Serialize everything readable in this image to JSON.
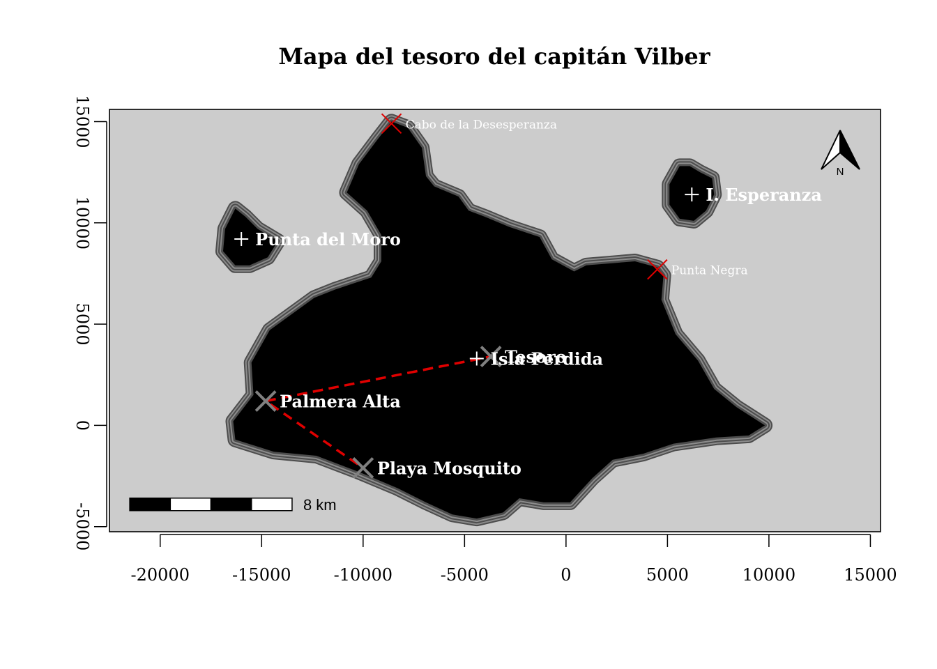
{
  "map": {
    "title": "Mapa del tesoro del capitán Vilber",
    "x_ticks": [
      "-20000",
      "-15000",
      "-10000",
      "-5000",
      "0",
      "5000",
      "10000",
      "15000"
    ],
    "y_ticks": [
      "-5000",
      "0",
      "5000",
      "10000",
      "15000"
    ],
    "north_label": "N",
    "scale_label": "8 km",
    "colors": {
      "panel_bg": "#cccccc",
      "land": "#000000",
      "coast_ring": "#8c8c8c",
      "coast_outline": "#4d4d4d",
      "route": "#e00000",
      "cape_marker": "#e00000",
      "treasure_marker": "#808080",
      "label": "#ffffff"
    }
  },
  "chart_data": {
    "type": "map",
    "title": "Mapa del tesoro del capitán Vilber",
    "xlim": [
      -22500,
      15500
    ],
    "ylim": [
      -5250,
      15600
    ],
    "x_ticks": [
      -20000,
      -15000,
      -10000,
      -5000,
      0,
      5000,
      10000,
      15000
    ],
    "y_ticks": [
      -5000,
      0,
      5000,
      10000,
      15000
    ],
    "islands": [
      {
        "name": "Isla Perdida",
        "label_point": [
          -4400,
          3300
        ],
        "outline": [
          [
            -8600,
            15000
          ],
          [
            -7800,
            14700
          ],
          [
            -7100,
            13700
          ],
          [
            -6900,
            12300
          ],
          [
            -6500,
            11800
          ],
          [
            -5300,
            11300
          ],
          [
            -4800,
            10600
          ],
          [
            -4000,
            10300
          ],
          [
            -2800,
            9800
          ],
          [
            -1300,
            9300
          ],
          [
            -700,
            8200
          ],
          [
            400,
            7600
          ],
          [
            1000,
            7900
          ],
          [
            3400,
            8100
          ],
          [
            4500,
            7800
          ],
          [
            4800,
            7400
          ],
          [
            4700,
            6200
          ],
          [
            5400,
            4500
          ],
          [
            6500,
            3200
          ],
          [
            7300,
            1800
          ],
          [
            8400,
            900
          ],
          [
            9800,
            0
          ],
          [
            9000,
            -500
          ],
          [
            7400,
            -600
          ],
          [
            5300,
            -900
          ],
          [
            3800,
            -1400
          ],
          [
            2300,
            -1700
          ],
          [
            1300,
            -2600
          ],
          [
            200,
            -3800
          ],
          [
            -1100,
            -3800
          ],
          [
            -2300,
            -3600
          ],
          [
            -3100,
            -4300
          ],
          [
            -4400,
            -4600
          ],
          [
            -5600,
            -4400
          ],
          [
            -6900,
            -3800
          ],
          [
            -8300,
            -3100
          ],
          [
            -10200,
            -2300
          ],
          [
            -12300,
            -1500
          ],
          [
            -14400,
            -1300
          ],
          [
            -16300,
            -700
          ],
          [
            -16400,
            200
          ],
          [
            -15400,
            1500
          ],
          [
            -15500,
            3100
          ],
          [
            -14600,
            4700
          ],
          [
            -12400,
            6300
          ],
          [
            -11400,
            6700
          ],
          [
            -9600,
            7300
          ],
          [
            -9100,
            8100
          ],
          [
            -9100,
            9400
          ],
          [
            -9800,
            10600
          ],
          [
            -10800,
            11500
          ],
          [
            -10200,
            12900
          ],
          [
            -9300,
            14100
          ],
          [
            -8600,
            15000
          ]
        ]
      },
      {
        "name": "Punta del Moro",
        "label_point": [
          -16000,
          9200
        ],
        "outline": [
          [
            -16300,
            10700
          ],
          [
            -15800,
            10300
          ],
          [
            -15200,
            9700
          ],
          [
            -14200,
            9100
          ],
          [
            -14700,
            8300
          ],
          [
            -15600,
            7900
          ],
          [
            -16300,
            7900
          ],
          [
            -16900,
            8600
          ],
          [
            -16800,
            9700
          ],
          [
            -16300,
            10700
          ]
        ]
      },
      {
        "name": "I. Esperanza",
        "label_point": [
          6200,
          11400
        ],
        "outline": [
          [
            5600,
            12800
          ],
          [
            6100,
            12800
          ],
          [
            6600,
            12500
          ],
          [
            7200,
            12200
          ],
          [
            7300,
            11400
          ],
          [
            6900,
            10600
          ],
          [
            6300,
            10100
          ],
          [
            5600,
            10200
          ],
          [
            5100,
            10900
          ],
          [
            5100,
            11900
          ],
          [
            5600,
            12800
          ]
        ]
      }
    ],
    "label_points": [
      {
        "name": "Punta del Moro",
        "x": -16000,
        "y": 9200
      },
      {
        "name": "I. Esperanza",
        "x": 6200,
        "y": 11400
      },
      {
        "name": "Isla Perdida",
        "x": -4400,
        "y": 3300
      }
    ],
    "capes": [
      {
        "name": "Cabo de la Desesperanza",
        "x": -8600,
        "y": 14900
      },
      {
        "name": "Punta Negra",
        "x": 4500,
        "y": 7700
      }
    ],
    "treasure_points": [
      {
        "name": "Palmera Alta",
        "x": -14800,
        "y": 1200
      },
      {
        "name": "Playa Mosquito",
        "x": -10000,
        "y": -2100
      },
      {
        "name": "Tesoro",
        "x": -3700,
        "y": 3400
      }
    ],
    "route": [
      {
        "x": -14800,
        "y": 1200
      },
      {
        "x": -3700,
        "y": 3400
      },
      {
        "x": -14800,
        "y": 1200
      },
      {
        "x": -10000,
        "y": -2100
      }
    ],
    "scale_bar": {
      "length": 8000,
      "segments": 4,
      "label": "8 km",
      "x_start": -21500,
      "y": -3900
    },
    "north_arrow": {
      "placement": "top-right",
      "label": "N"
    }
  }
}
